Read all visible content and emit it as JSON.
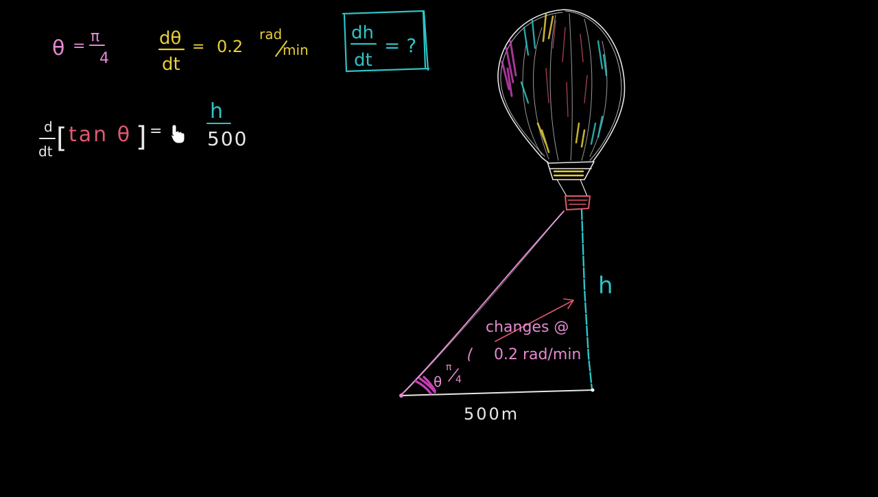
{
  "colors": {
    "background": "#000000",
    "pink": "#e58ad0",
    "yellow": "#e8cf3a",
    "teal": "#2ec4c6",
    "white": "#e8e8e8",
    "red": "#e0596e",
    "magenta": "#c63fb4"
  },
  "givens": {
    "theta": "θ",
    "equals": "=",
    "pi": "π",
    "four": "4",
    "dtheta_num": "dθ",
    "dtheta_den": "dt",
    "rate_value": "0.2",
    "rate_unit_num": "rad",
    "rate_unit_den": "min"
  },
  "question": {
    "dh": "dh",
    "dt": "dt",
    "equals_q": "= ?"
  },
  "equation": {
    "d_num": "d",
    "d_den": "dt",
    "open_bracket": "[",
    "tan_theta": "tan θ",
    "close_bracket": "]",
    "equals": "=",
    "h": "h",
    "denominator": "500"
  },
  "diagram": {
    "height_label": "h",
    "base_label": "500m",
    "angle_theta": "θ",
    "angle_pi": "π",
    "angle_four": "4",
    "note_line1": "changes @",
    "note_line2": "0.2 rad/min",
    "balloon_icon": "hot-air-balloon-icon"
  },
  "cursor_icon": "hand-pointer-icon"
}
